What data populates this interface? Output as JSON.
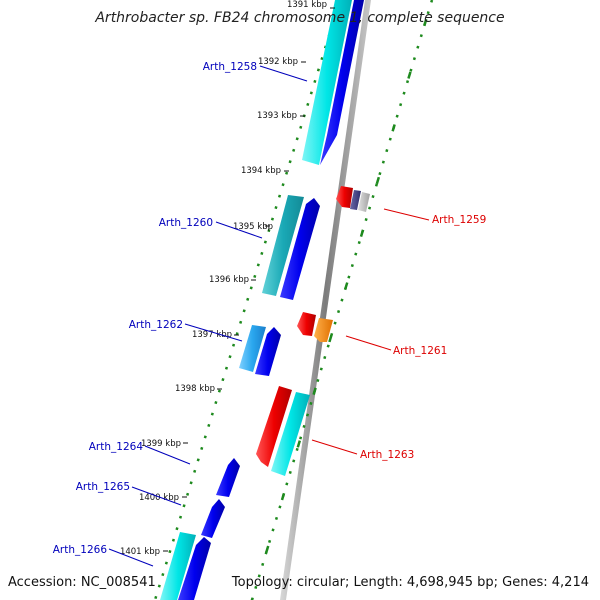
{
  "title": "Arthrobacter sp. FB24 chromosome 1, complete sequence",
  "accession": "Accession: NC_008541",
  "summary": "Topology: circular; Length: 4,698,945 bp; Genes: 4,214",
  "ticks": [
    {
      "label": "1391 kbp"
    },
    {
      "label": "1392 kbp"
    },
    {
      "label": "1393 kbp"
    },
    {
      "label": "1394 kbp"
    },
    {
      "label": "1395 kbp"
    },
    {
      "label": "1396 kbp"
    },
    {
      "label": "1397 kbp"
    },
    {
      "label": "1398 kbp"
    },
    {
      "label": "1399 kbp"
    },
    {
      "label": "1400 kbp"
    },
    {
      "label": "1401 kbp"
    }
  ],
  "genes_left": [
    {
      "label": "Arth_1258"
    },
    {
      "label": "Arth_1260"
    },
    {
      "label": "Arth_1262"
    },
    {
      "label": "Arth_1264"
    },
    {
      "label": "Arth_1265"
    },
    {
      "label": "Arth_1266"
    }
  ],
  "genes_right": [
    {
      "label": "Arth_1259"
    },
    {
      "label": "Arth_1261"
    },
    {
      "label": "Arth_1263"
    }
  ],
  "colors": {
    "backbone": "#8f8f8f",
    "tick_mark": "#1e8a1e",
    "forward_label": "#0000bb",
    "reverse_label": "#dd0000",
    "cds": "#0000ee",
    "gene": "#00dddd",
    "gene_alt": "#21b8c9",
    "gene_light": "#2aa7ee",
    "reverse_cds": "#ee0000",
    "orange": "#ff8800",
    "purple": "#44448a"
  }
}
